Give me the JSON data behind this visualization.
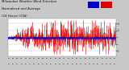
{
  "bg_color": "#c8c8c8",
  "plot_bg_color": "#ffffff",
  "grid_color": "#aaaaaa",
  "bar_color": "#dd0000",
  "avg_color": "#0000cc",
  "ylim": [
    -5.5,
    5.5
  ],
  "yticks": [
    4,
    2,
    0,
    -2,
    -4
  ],
  "ytick_labels": [
    "4",
    "2",
    ".",
    "..",
    "5"
  ],
  "n_points": 730,
  "seed": 77,
  "title_fontsize": 3.0,
  "tick_fontsize": 2.0
}
